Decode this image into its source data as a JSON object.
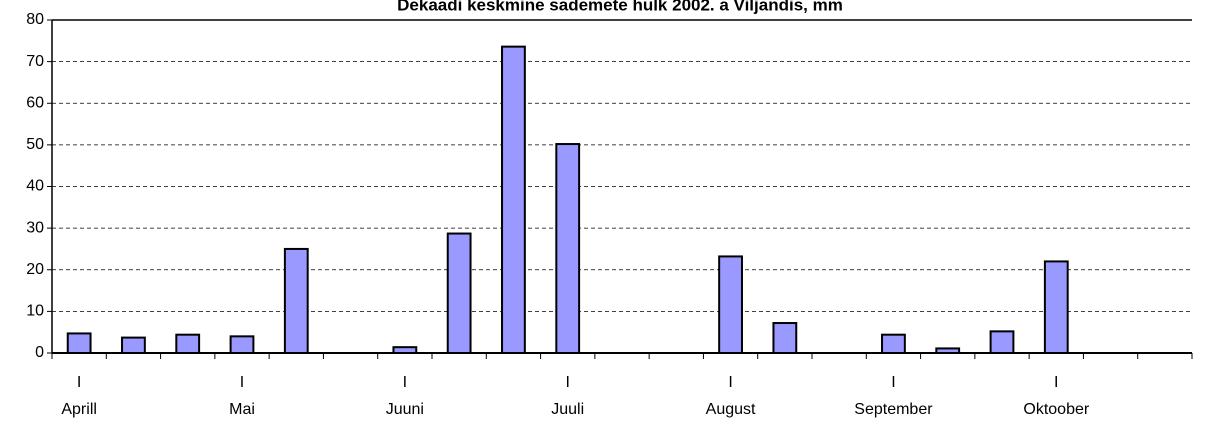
{
  "chart_data": {
    "type": "bar",
    "title": "Dekaadi keskmine sademete hulk 2002. a Viljandis, mm",
    "categories": [
      "Aprill",
      null,
      null,
      "Mai",
      null,
      null,
      "Juuni",
      null,
      null,
      "Juuli",
      null,
      null,
      "August",
      null,
      null,
      "September",
      null,
      null,
      "Oktoober",
      null,
      null
    ],
    "decade_labels": [
      "I",
      null,
      null,
      "I",
      null,
      null,
      "I",
      null,
      null,
      "I",
      null,
      null,
      "I",
      null,
      null,
      "I",
      null,
      null,
      "I",
      null,
      null
    ],
    "values": [
      4.7,
      3.7,
      4.4,
      4.0,
      25.0,
      0,
      1.4,
      28.7,
      73.6,
      50.2,
      0,
      0,
      23.2,
      7.2,
      0,
      4.4,
      1.1,
      5.2,
      22.0,
      0,
      0
    ],
    "color": "#9999ff",
    "ylim": [
      0,
      80
    ],
    "yticks": [
      0,
      10,
      20,
      30,
      40,
      50,
      60,
      70,
      80
    ],
    "grid": true
  }
}
